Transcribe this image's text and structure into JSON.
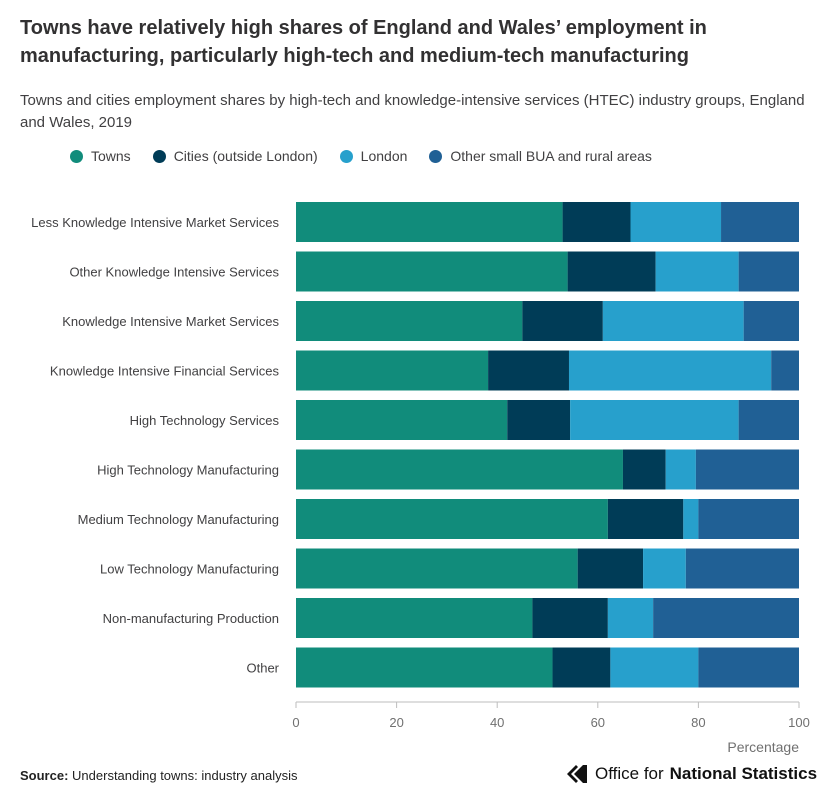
{
  "title": "Towns have relatively high shares of England and Wales’ employment in manufacturing, particularly high-tech and medium-tech manufacturing",
  "subtitle": "Towns and cities employment shares by high-tech and knowledge-intensive services (HTEC) industry groups, England and Wales, 2019",
  "source_label": "Source:",
  "source_text": "Understanding towns: industry analysis",
  "logo": {
    "prefix": "Office for",
    "bold": "National Statistics"
  },
  "colors": {
    "towns": "#118c7b",
    "cities": "#003c57",
    "london": "#27a0cc",
    "other_rural": "#206095"
  },
  "chart_data": {
    "type": "bar",
    "orientation": "horizontal",
    "stacked": true,
    "categories": [
      "Less Knowledge Intensive Market Services",
      "Other Knowledge Intensive Services",
      "Knowledge Intensive Market Services",
      "Knowledge Intensive Financial Services",
      "High Technology Services",
      "High Technology Manufacturing",
      "Medium Technology Manufacturing",
      "Low Technology Manufacturing",
      "Non-manufacturing Production",
      "Other"
    ],
    "series": [
      {
        "name": "Towns",
        "color": "#118c7b",
        "values": [
          53,
          54,
          45,
          38,
          42,
          65,
          62,
          56,
          47,
          51
        ]
      },
      {
        "name": "Cities (outside London)",
        "color": "#003c57",
        "values": [
          13.5,
          17.5,
          16,
          16,
          12.5,
          8.5,
          15,
          13,
          15,
          11.5
        ]
      },
      {
        "name": "London",
        "color": "#27a0cc",
        "values": [
          18,
          16.5,
          28,
          40,
          33.5,
          6,
          3,
          8.5,
          9,
          17.5
        ]
      },
      {
        "name": "Other small BUA and rural areas",
        "color": "#206095",
        "values": [
          15.5,
          12,
          11,
          5.5,
          12,
          20.5,
          20,
          22.5,
          29,
          20
        ]
      }
    ],
    "xlabel": "Percentage",
    "ylabel": "",
    "xlim": [
      0,
      100
    ],
    "xticks": [
      0,
      20,
      40,
      60,
      80,
      100
    ],
    "legend_position": "top-left",
    "grid": false
  }
}
